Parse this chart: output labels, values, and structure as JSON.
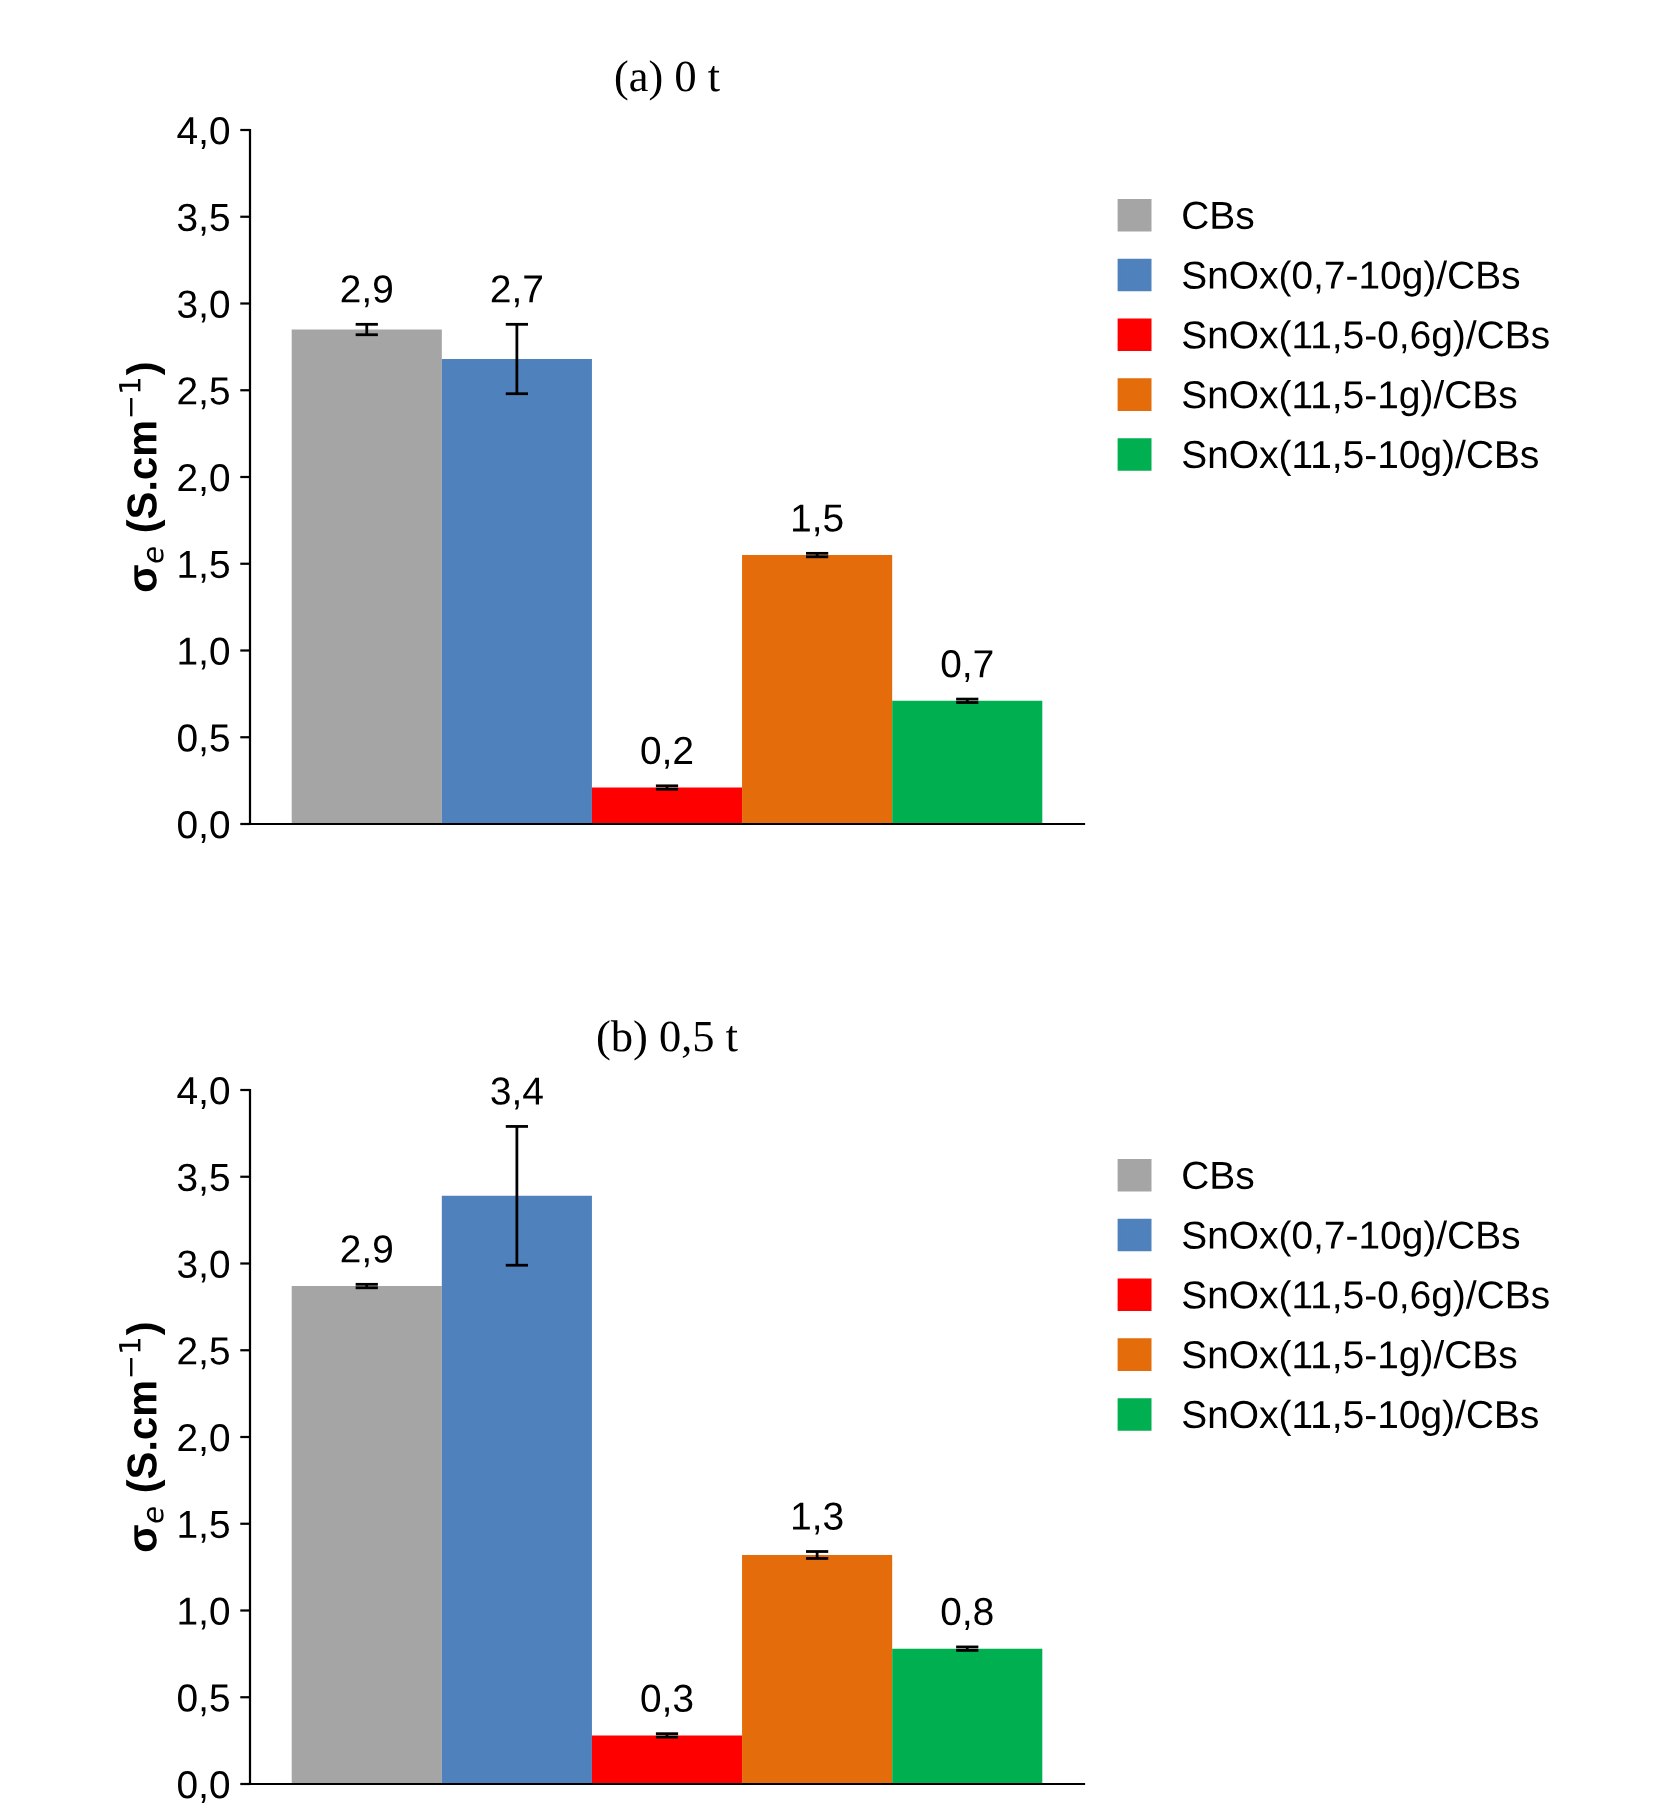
{
  "chart_data": [
    {
      "type": "bar",
      "title": "(a) 0 t",
      "ylabel": "σ$_{e}$ (S.cm$^{−1}$)",
      "categories": [
        null
      ],
      "ylim": [
        0,
        4
      ],
      "yticks": [
        {
          "value": 0,
          "label": "0,0"
        },
        {
          "value": 0.5,
          "label": "0,5"
        },
        {
          "value": 1,
          "label": "1,0"
        },
        {
          "value": 1.5,
          "label": "1,5"
        },
        {
          "value": 2,
          "label": "2,0"
        },
        {
          "value": 2.5,
          "label": "2,5"
        },
        {
          "value": 3,
          "label": "3,0"
        },
        {
          "value": 3.5,
          "label": "3,5"
        },
        {
          "value": 4,
          "label": "4,0"
        }
      ],
      "grid": false,
      "legend": "right",
      "series": [
        {
          "name": "CBs",
          "color": "#a5a5a5",
          "values": [
            2.85
          ],
          "errors": [
            0.03
          ],
          "value_labels": [
            "2,9"
          ]
        },
        {
          "name": "SnOx(0,7-10g)/CBs",
          "color": "#4f81bd",
          "values": [
            2.68
          ],
          "errors": [
            0.2
          ],
          "value_labels": [
            "2,7"
          ]
        },
        {
          "name": "SnOx(11,5-0,6g)/CBs",
          "color": "#ff0000",
          "values": [
            0.21
          ],
          "errors": [
            0.01
          ],
          "value_labels": [
            "0,2"
          ]
        },
        {
          "name": "SnOx(11,5-1g)/CBs",
          "color": "#e46c0a",
          "values": [
            1.55
          ],
          "errors": [
            0.01
          ],
          "value_labels": [
            "1,5"
          ]
        },
        {
          "name": "SnOx(11,5-10g)/CBs",
          "color": "#00b050",
          "values": [
            0.71
          ],
          "errors": [
            0.01
          ],
          "value_labels": [
            "0,7"
          ]
        }
      ]
    },
    {
      "type": "bar",
      "title": "(b) 0,5 t",
      "ylabel": "σ$_{e}$ (S.cm$^{−1}$)",
      "categories": [
        null
      ],
      "ylim": [
        0,
        4
      ],
      "yticks": [
        {
          "value": 0,
          "label": "0,0"
        },
        {
          "value": 0.5,
          "label": "0,5"
        },
        {
          "value": 1,
          "label": "1,0"
        },
        {
          "value": 1.5,
          "label": "1,5"
        },
        {
          "value": 2,
          "label": "2,0"
        },
        {
          "value": 2.5,
          "label": "2,5"
        },
        {
          "value": 3,
          "label": "3,0"
        },
        {
          "value": 3.5,
          "label": "3,5"
        },
        {
          "value": 4,
          "label": "4,0"
        }
      ],
      "grid": false,
      "legend": "right",
      "series": [
        {
          "name": "CBs",
          "color": "#a5a5a5",
          "values": [
            2.87
          ],
          "errors": [
            0.01
          ],
          "value_labels": [
            "2,9"
          ]
        },
        {
          "name": "SnOx(0,7-10g)/CBs",
          "color": "#4f81bd",
          "values": [
            3.39
          ],
          "errors": [
            0.4
          ],
          "value_labels": [
            "3,4"
          ]
        },
        {
          "name": "SnOx(11,5-0,6g)/CBs",
          "color": "#ff0000",
          "values": [
            0.28
          ],
          "errors": [
            0.01
          ],
          "value_labels": [
            "0,3"
          ]
        },
        {
          "name": "SnOx(11,5-1g)/CBs",
          "color": "#e46c0a",
          "values": [
            1.32
          ],
          "errors": [
            0.02
          ],
          "value_labels": [
            "1,3"
          ]
        },
        {
          "name": "SnOx(11,5-10g)/CBs",
          "color": "#00b050",
          "values": [
            0.78
          ],
          "errors": [
            0.01
          ],
          "value_labels": [
            "0,8"
          ]
        }
      ]
    }
  ]
}
